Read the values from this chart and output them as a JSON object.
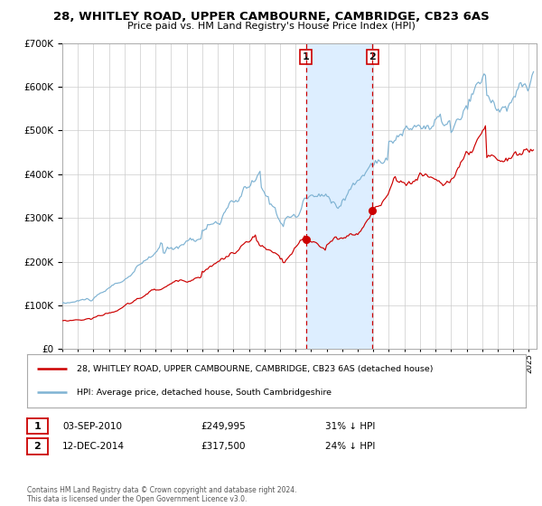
{
  "title1": "28, WHITLEY ROAD, UPPER CAMBOURNE, CAMBRIDGE, CB23 6AS",
  "title2": "Price paid vs. HM Land Registry's House Price Index (HPI)",
  "legend_red": "28, WHITLEY ROAD, UPPER CAMBOURNE, CAMBRIDGE, CB23 6AS (detached house)",
  "legend_blue": "HPI: Average price, detached house, South Cambridgeshire",
  "annotation1_date": "03-SEP-2010",
  "annotation1_price": "£249,995",
  "annotation1_hpi": "31% ↓ HPI",
  "annotation2_date": "12-DEC-2014",
  "annotation2_price": "£317,500",
  "annotation2_hpi": "24% ↓ HPI",
  "copyright": "Contains HM Land Registry data © Crown copyright and database right 2024.\nThis data is licensed under the Open Government Licence v3.0.",
  "sale1_date_num": 2010.67,
  "sale1_price": 249995,
  "sale2_date_num": 2014.94,
  "sale2_price": 317500,
  "shading_start": 2010.67,
  "shading_end": 2014.94,
  "red_color": "#cc0000",
  "blue_color": "#7fb3d3",
  "shading_color": "#ddeeff",
  "dashed_color": "#cc0000",
  "background_color": "#ffffff",
  "grid_color": "#cccccc",
  "ylim_min": 0,
  "ylim_max": 700000,
  "xlim_min": 1995.0,
  "xlim_max": 2025.5
}
